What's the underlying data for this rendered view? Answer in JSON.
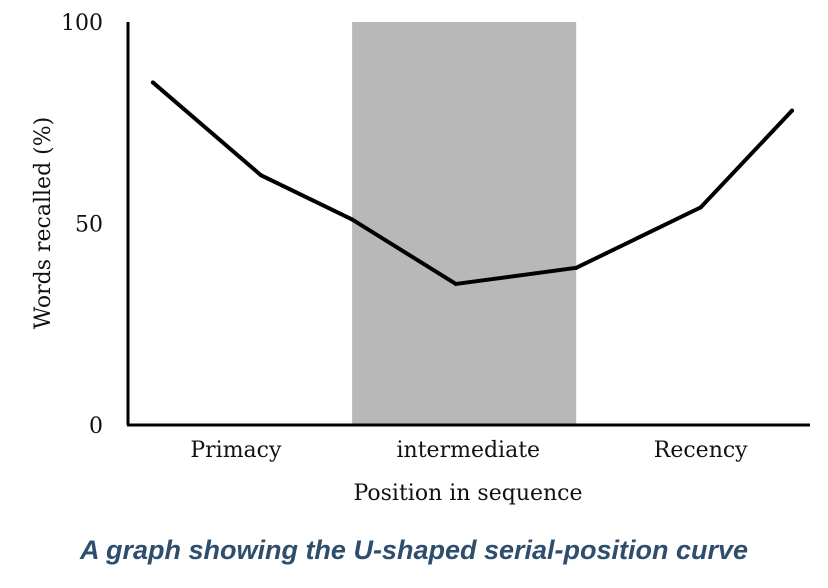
{
  "caption": "A graph showing the U-shaped serial-position curve",
  "chart_data": {
    "type": "line",
    "title": "",
    "ylabel": "Words recalled (%)",
    "xlabel": "Position in sequence",
    "ylim": [
      0,
      100
    ],
    "xlim": [
      0,
      8
    ],
    "y_ticks": [
      {
        "value": 0,
        "label": "0"
      },
      {
        "value": 50,
        "label": "50"
      },
      {
        "value": 100,
        "label": "100"
      }
    ],
    "region_labels": [
      {
        "x": 1.3,
        "label": "Primacy"
      },
      {
        "x": 4.1,
        "label": "intermediate"
      },
      {
        "x": 6.9,
        "label": "Recency"
      }
    ],
    "shaded_region": {
      "x_start": 2.7,
      "x_end": 5.4,
      "color": "#b8b8b8"
    },
    "series": [
      {
        "line_color": "#000000",
        "x": [
          0.3,
          1.6,
          2.7,
          3.95,
          5.4,
          6.9,
          8.0
        ],
        "y": [
          85,
          62,
          51,
          35,
          39,
          54,
          78
        ]
      }
    ],
    "grid": false
  }
}
